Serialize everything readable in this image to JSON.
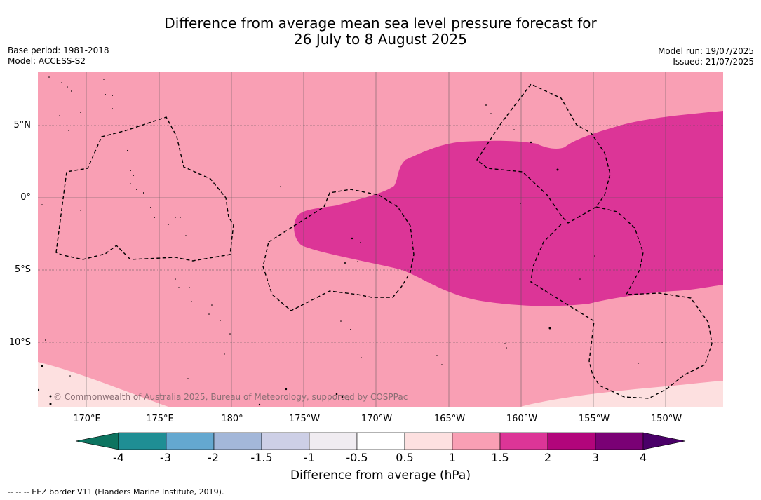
{
  "title_line1": "Difference from average mean sea level pressure forecast for",
  "title_line2": "26 July to 8 August 2025",
  "base_period": "Base period: 1981-2018",
  "model": "Model: ACCESS-S2",
  "model_run": "Model run: 19/07/2025",
  "issued": "Issued: 21/07/2025",
  "copyright": "© Commonwealth of Australia 2025, Bureau of Meteorology, supported by COSPPac",
  "lat_labels": [
    "5°N",
    "0°",
    "5°S",
    "10°S"
  ],
  "lon_labels": [
    "170°E",
    "175°E",
    "180°",
    "175°W",
    "170°W",
    "165°W",
    "160°W",
    "155°W",
    "150°W"
  ],
  "colorbar": {
    "title": "Difference from average (hPa)",
    "ticks": [
      "-4",
      "-3",
      "-2",
      "-1.5",
      "-1",
      "-0.5",
      "0.5",
      "1",
      "1.5",
      "2",
      "3",
      "4"
    ],
    "colors": [
      "#1f8e94",
      "#64a8d0",
      "#a3b7d9",
      "#cdcfe6",
      "#f0ecf1",
      "#ffffff",
      "#fde0e0",
      "#f99fb4",
      "#dc3597",
      "#b2057b",
      "#7a0175"
    ],
    "under_color": "#0d7460",
    "over_color": "#4a0068"
  },
  "field_colors": {
    "bin_0_5_1": "#fde0e0",
    "bin_1_1_5": "#f99fb4",
    "bin_1_5_2": "#dc3597"
  },
  "legend_note": "--  --  -- EEZ border V11 (Flanders Marine Institute, 2019)."
}
